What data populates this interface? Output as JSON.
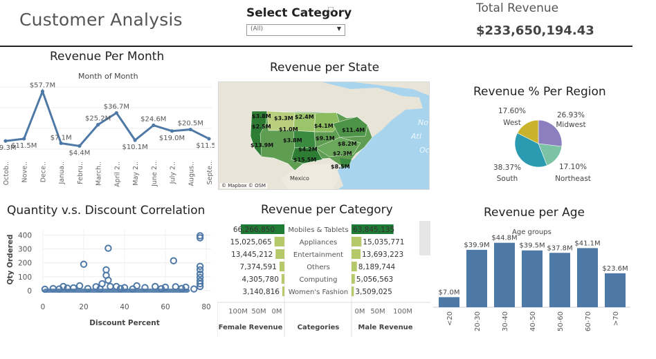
{
  "header": {
    "title": "Customer Analysis",
    "select_category_label": "Select Category",
    "dropdown_value": "(All)",
    "total_revenue_label": "Total Revenue",
    "total_revenue_value": "$233,650,194.43"
  },
  "colors": {
    "line_blue": "#4e79a7",
    "bar_green_dark": "#1e7a35",
    "bar_green_light": "#b5c96b",
    "pie_yellow": "#c9b22c",
    "pie_purple": "#8c7fbf",
    "pie_green": "#7cc3a6",
    "pie_teal": "#2a9bb0"
  },
  "revenue_per_month": {
    "title": "Revenue Per Month",
    "subtitle": "Month of Month",
    "chart_data": {
      "type": "line",
      "categories": [
        "Octob..",
        "Nove..",
        "Dece..",
        "Janua..",
        "Febru..",
        "March..",
        "April 2..",
        "May 2..",
        "June 2..",
        "July 2..",
        "Augus..",
        "Septe.."
      ],
      "values": [
        9.3,
        11.5,
        57.7,
        7.1,
        4.4,
        25.2,
        36.7,
        10.1,
        24.6,
        19.0,
        20.5,
        11.5
      ],
      "labels": [
        "$9.3M",
        "$11.5M",
        "$57.7M",
        "$7.1M",
        "$4.4M",
        "$25.2M",
        "$36.7M",
        "$10.1M",
        "$24.6M",
        "$19.0M",
        "$20.5M",
        "$11.5M"
      ],
      "ylim": [
        0,
        62
      ]
    }
  },
  "revenue_per_state": {
    "title": "Revenue per State",
    "labels": [
      "$3.8M",
      "$3.3M",
      "$2.4M",
      "$2.5M",
      "$1.0M",
      "$4.1M",
      "$11.4M",
      "$9.1M",
      "$3.8M",
      "$8.2M",
      "$13.9M",
      "$4.2M",
      "$2.3M",
      "$15.5M",
      "$8.5M"
    ],
    "mexico_label": "Mexico",
    "attribution": "© Mapbox  © OSM",
    "ocean_text": [
      "No",
      "Atl",
      "Oc"
    ]
  },
  "revenue_per_region": {
    "title": "Revenue % Per Region",
    "chart_data": {
      "type": "pie",
      "slices": [
        {
          "name": "Midwest",
          "value": 26.93,
          "label": "26.93%"
        },
        {
          "name": "Northeast",
          "value": 17.1,
          "label": "17.10%"
        },
        {
          "name": "South",
          "value": 38.37,
          "label": "38.37%"
        },
        {
          "name": "West",
          "value": 17.6,
          "label": "17.60%"
        }
      ]
    }
  },
  "quantity_discount": {
    "title": "Quantity v.s. Discount Correlation",
    "chart_data": {
      "type": "scatter",
      "xlabel": "Discount Percent",
      "ylabel": "Qty Ordered",
      "xlim": [
        0,
        80
      ],
      "ylim": [
        0,
        420
      ],
      "xticks": [
        "0",
        "20",
        "40",
        "60",
        "80"
      ],
      "yticks": [
        "400",
        "300",
        "200",
        "100",
        "0"
      ],
      "points": [
        [
          32,
          305
        ],
        [
          20,
          190
        ],
        [
          31,
          150
        ],
        [
          31,
          110
        ],
        [
          32,
          75
        ],
        [
          29,
          50
        ],
        [
          64,
          215
        ],
        [
          77,
          395
        ],
        [
          77,
          380
        ],
        [
          77,
          175
        ],
        [
          77,
          150
        ],
        [
          77,
          120
        ],
        [
          77,
          95
        ],
        [
          77,
          70
        ],
        [
          77,
          50
        ],
        [
          77,
          30
        ],
        [
          33,
          30
        ],
        [
          18,
          35
        ],
        [
          10,
          30
        ],
        [
          46,
          35
        ],
        [
          55,
          30
        ],
        [
          60,
          25
        ],
        [
          65,
          28
        ],
        [
          70,
          25
        ],
        [
          36,
          30
        ],
        [
          26,
          28
        ],
        [
          40,
          22
        ],
        [
          50,
          22
        ],
        [
          15,
          20
        ],
        [
          5,
          15
        ],
        [
          1,
          10
        ],
        [
          8,
          12
        ],
        [
          12,
          18
        ],
        [
          22,
          15
        ],
        [
          28,
          12
        ],
        [
          38,
          15
        ],
        [
          44,
          12
        ],
        [
          58,
          14
        ],
        [
          68,
          16
        ],
        [
          74,
          12
        ]
      ]
    }
  },
  "revenue_per_category": {
    "title": "Revenue per Category",
    "chart_data": {
      "type": "bar",
      "categories": [
        "Mobiles & Tablets",
        "Appliances",
        "Entertainment",
        "Others",
        "Computing",
        "Women's Fashion"
      ],
      "series": [
        {
          "name": "Female Revenue",
          "values": [
            66266850,
            15025065,
            13445212,
            7374591,
            4305780,
            3140816
          ],
          "labels": [
            "66,266,850",
            "15,025,065",
            "13,445,212",
            "7,374,591",
            "4,305,780",
            "3,140,816"
          ]
        },
        {
          "name": "Male Revenue",
          "values": [
            63845135,
            15035771,
            13693223,
            8189744,
            5056563,
            3509025
          ],
          "labels": [
            "63,845,135",
            "15,035,771",
            "13,693,223",
            "8,189,744",
            "5,056,563",
            "3,509,025"
          ]
        }
      ],
      "female_axis_ticks": [
        "100M",
        "50M",
        "0M"
      ],
      "male_axis_ticks": [
        "0M",
        "50M",
        "100M"
      ],
      "footer_labels": [
        "Female Revenue",
        "Categories",
        "Male Revenue"
      ]
    }
  },
  "revenue_per_age": {
    "title": "Revenue per Age",
    "subtitle": "Age groups",
    "chart_data": {
      "type": "bar",
      "categories": [
        "<20",
        "20-30",
        "30-40",
        "40-50",
        "50-60",
        "60-70",
        ">70"
      ],
      "values": [
        7.0,
        39.9,
        44.8,
        39.5,
        37.8,
        41.1,
        23.6
      ],
      "labels": [
        "$7.0M",
        "$39.9M",
        "$44.8M",
        "$39.5M",
        "$37.8M",
        "$41.1M",
        "$23.6M"
      ],
      "ylim": [
        0,
        50
      ]
    }
  }
}
